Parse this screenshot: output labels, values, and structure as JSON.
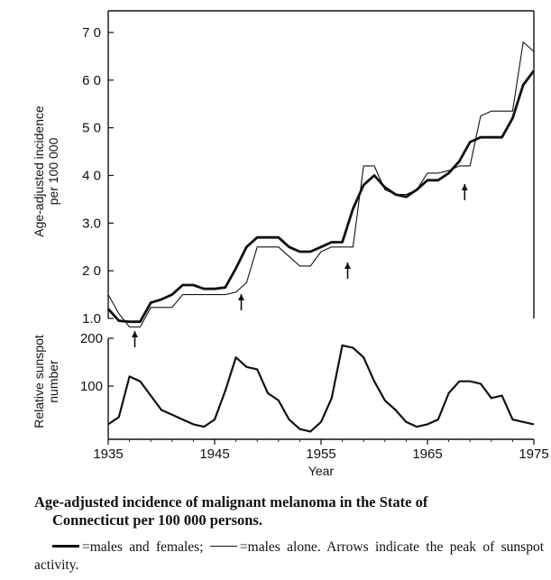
{
  "chart_data": [
    {
      "type": "line",
      "ylabel": "Age-adjusted incidence per 100 000",
      "ylim": [
        10,
        70
      ],
      "yticks": [
        "1.0",
        "2 0",
        "3.0",
        "4 0",
        "5 0",
        "6 0",
        "7 0"
      ],
      "ytick_values": [
        10,
        20,
        30,
        40,
        50,
        60,
        70
      ],
      "x": [
        1935,
        1936,
        1937,
        1938,
        1939,
        1940,
        1941,
        1942,
        1943,
        1944,
        1945,
        1946,
        1947,
        1948,
        1949,
        1950,
        1951,
        1952,
        1953,
        1954,
        1955,
        1956,
        1957,
        1958,
        1959,
        1960,
        1961,
        1962,
        1963,
        1964,
        1965,
        1966,
        1967,
        1968,
        1969,
        1970,
        1971,
        1972,
        1973,
        1974,
        1975
      ],
      "series": [
        {
          "name": "males and females",
          "style": "thick",
          "values": [
            12,
            9.5,
            9.3,
            9.3,
            13.3,
            14,
            15,
            17,
            17,
            16.2,
            16.2,
            16.5,
            20.5,
            25,
            27,
            27,
            27,
            25,
            24,
            24,
            25,
            26,
            26,
            33,
            38,
            40,
            37.5,
            36,
            35.5,
            37,
            39,
            39,
            40.5,
            43,
            47,
            48,
            48,
            48,
            52,
            59,
            62
          ]
        },
        {
          "name": "males alone",
          "style": "thin",
          "values": [
            15,
            11,
            8.2,
            8.2,
            12.3,
            12.3,
            12.3,
            15,
            15,
            15,
            15,
            15,
            15.5,
            17.5,
            25,
            25,
            25,
            23,
            21,
            21,
            24,
            25,
            25,
            25,
            42,
            42,
            37,
            36,
            36,
            37,
            40.5,
            40.5,
            41,
            42,
            42,
            52.5,
            53.5,
            53.5,
            53.5,
            68,
            66
          ]
        }
      ],
      "arrows_at": [
        1937.5,
        1947.5,
        1957.5,
        1968.5
      ]
    },
    {
      "type": "line",
      "ylabel": "Relative sunspot number",
      "xlabel": "Year",
      "ylim": [
        0,
        200
      ],
      "yticks": [
        "100",
        "200"
      ],
      "ytick_values": [
        100,
        200
      ],
      "xticks": [
        "1935",
        "1945",
        "1955",
        "1965",
        "1975"
      ],
      "xtick_values": [
        1935,
        1945,
        1955,
        1965,
        1975
      ],
      "x": [
        1935,
        1936,
        1937,
        1938,
        1939,
        1940,
        1941,
        1942,
        1943,
        1944,
        1945,
        1946,
        1947,
        1948,
        1949,
        1950,
        1951,
        1952,
        1953,
        1954,
        1955,
        1956,
        1957,
        1958,
        1959,
        1960,
        1961,
        1962,
        1963,
        1964,
        1965,
        1966,
        1967,
        1968,
        1969,
        1970,
        1971,
        1972,
        1973,
        1974,
        1975
      ],
      "series": [
        {
          "name": "sunspot",
          "style": "thick",
          "values": [
            20,
            35,
            120,
            110,
            80,
            50,
            40,
            30,
            20,
            15,
            30,
            90,
            160,
            140,
            135,
            85,
            70,
            30,
            10,
            5,
            25,
            75,
            185,
            180,
            160,
            110,
            70,
            50,
            25,
            15,
            20,
            30,
            85,
            110,
            110,
            105,
            75,
            80,
            30,
            25,
            20
          ]
        }
      ]
    }
  ],
  "caption": {
    "title_line1": "Age-adjusted incidence of malignant melanoma in the State of",
    "title_line2": "Connecticut per 100 000 persons.",
    "legend_thick": "=males and females;",
    "legend_thin": "=males alone.",
    "legend_rest_1": "Arrows indicate the",
    "legend_rest_2": "peak of sunspot activity."
  },
  "colors": {
    "ink": "#111111",
    "background": "#ffffff"
  }
}
